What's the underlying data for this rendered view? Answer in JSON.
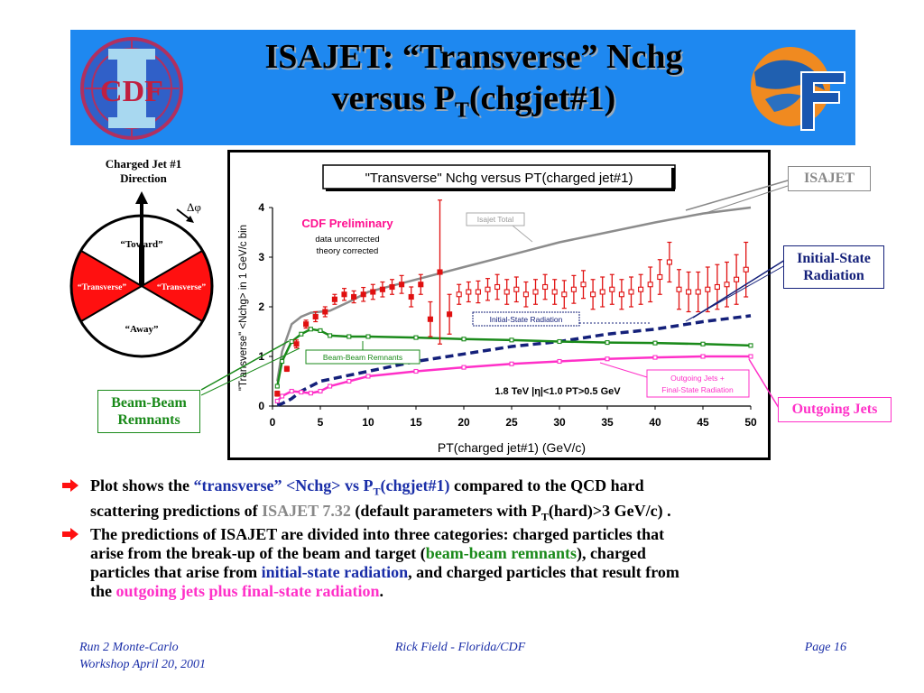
{
  "slide": {
    "title_line1": "ISAJET: “Transverse” Nchg",
    "title_line2_pre": "versus P",
    "title_line2_sub": "T",
    "title_line2_post": "(chgjet#1)",
    "left_logo_text": "CDF",
    "colors": {
      "banner": "#1e88f0",
      "blue_text": "#1a2ea8",
      "green": "#1a8a1a",
      "magenta": "#ff30c8",
      "red": "#e01010"
    }
  },
  "diagram": {
    "heading": "Charged Jet #1 Direction",
    "dphi": "Δφ",
    "toward": "“Toward”",
    "transverse_left": "“Transverse”",
    "transverse_right": "“Transverse”",
    "away": "“Away”"
  },
  "callouts": {
    "isajet": "ISAJET",
    "isr": "Initial-State Radiation",
    "outgoing": "Outgoing Jets",
    "bbr": "Beam-Beam Remnants"
  },
  "chart_data": {
    "type": "line",
    "title": "\"Transverse\" Nchg versus PT(charged jet#1)",
    "xlabel": "PT(charged jet#1)  (GeV/c)",
    "ylabel": "\"Transverse\" <Nchg> in 1 GeV/c bin",
    "xlim": [
      0,
      50
    ],
    "ylim": [
      0,
      4
    ],
    "xticks": [
      0,
      5,
      10,
      15,
      20,
      25,
      30,
      35,
      40,
      45,
      50
    ],
    "yticks": [
      0,
      1,
      2,
      3,
      4
    ],
    "annotations": {
      "prelim": "CDF Preliminary",
      "uncorrected": "data uncorrected",
      "corrected": "theory corrected",
      "cuts": "1.8 TeV |η|<1.0 PT>0.5 GeV",
      "isajet_total": "Isajet Total",
      "isr": "Initial-State Radiation",
      "bbr": "Beam-Beam Remnants",
      "outgoing_line1": "Outgoing Jets +",
      "outgoing_line2": "Final-State Radiation"
    },
    "series": [
      {
        "name": "Isajet Total",
        "color": "#8c8c8c",
        "style": "solid",
        "x": [
          0.5,
          1,
          2,
          3,
          4,
          5,
          6,
          8,
          10,
          15,
          20,
          25,
          30,
          35,
          40,
          45,
          50
        ],
        "y": [
          0.5,
          1.1,
          1.65,
          1.8,
          1.88,
          1.9,
          1.92,
          2.1,
          2.3,
          2.55,
          2.8,
          3.05,
          3.3,
          3.5,
          3.7,
          3.88,
          4.0
        ]
      },
      {
        "name": "Initial-State Radiation",
        "color": "#14207a",
        "style": "dashed",
        "x": [
          0.5,
          1,
          2,
          3,
          5,
          10,
          15,
          20,
          25,
          30,
          35,
          40,
          45,
          50
        ],
        "y": [
          0.02,
          0.05,
          0.15,
          0.3,
          0.5,
          0.7,
          0.9,
          1.05,
          1.2,
          1.3,
          1.45,
          1.55,
          1.7,
          1.82
        ]
      },
      {
        "name": "Beam-Beam Remnants",
        "color": "#1a8a1a",
        "style": "solid",
        "marker": "square-open",
        "x": [
          0.5,
          1,
          2,
          3,
          4,
          5,
          6,
          8,
          10,
          15,
          20,
          25,
          30,
          35,
          40,
          45,
          50
        ],
        "y": [
          0.4,
          0.9,
          1.3,
          1.45,
          1.55,
          1.52,
          1.42,
          1.4,
          1.4,
          1.38,
          1.35,
          1.33,
          1.3,
          1.28,
          1.27,
          1.25,
          1.22
        ]
      },
      {
        "name": "Outgoing Jets + Final-State Radiation",
        "color": "#ff30c8",
        "style": "solid",
        "marker": "square-open",
        "x": [
          0.5,
          1,
          2,
          3,
          4,
          5,
          6,
          8,
          10,
          15,
          20,
          25,
          30,
          35,
          40,
          45,
          50
        ],
        "y": [
          0.1,
          0.2,
          0.3,
          0.28,
          0.26,
          0.3,
          0.4,
          0.5,
          0.6,
          0.7,
          0.78,
          0.85,
          0.9,
          0.95,
          0.98,
          1.0,
          1.0
        ]
      },
      {
        "name": "CDF data",
        "color": "#e01010",
        "marker": "square-filled",
        "x": [
          0.5,
          1.5,
          2.5,
          3.5,
          4.5,
          5.5,
          6.5,
          7.5,
          8.5,
          9.5,
          10.5,
          11.5,
          12.5,
          13.5,
          14.5,
          15.5,
          16.5,
          17.5,
          18.5
        ],
        "y": [
          0.25,
          0.75,
          1.25,
          1.65,
          1.8,
          1.9,
          2.15,
          2.25,
          2.2,
          2.25,
          2.3,
          2.35,
          2.4,
          2.45,
          2.2,
          2.45,
          1.75,
          2.7,
          1.85
        ],
        "err": [
          0.05,
          0.05,
          0.08,
          0.08,
          0.1,
          0.1,
          0.1,
          0.12,
          0.12,
          0.14,
          0.15,
          0.15,
          0.15,
          0.18,
          0.2,
          0.2,
          0.35,
          1.45,
          0.4
        ]
      },
      {
        "name": "CDF data",
        "color": "#e01010",
        "marker": "square-open",
        "x": [
          19.5,
          20.5,
          21.5,
          22.5,
          23.5,
          24.5,
          25.5,
          26.5,
          27.5,
          28.5,
          29.5,
          30.5,
          31.5,
          32.5,
          33.5,
          34.5,
          35.5,
          36.5,
          37.5,
          38.5,
          39.5,
          40.5,
          41.5,
          42.5,
          43.5,
          44.5,
          45.5,
          46.5,
          47.5,
          48.5,
          49.5
        ],
        "y": [
          2.25,
          2.3,
          2.3,
          2.35,
          2.4,
          2.3,
          2.35,
          2.25,
          2.3,
          2.4,
          2.3,
          2.25,
          2.35,
          2.45,
          2.25,
          2.3,
          2.35,
          2.25,
          2.3,
          2.35,
          2.45,
          2.6,
          2.9,
          2.35,
          2.3,
          2.3,
          2.35,
          2.4,
          2.45,
          2.55,
          2.75
        ],
        "err": [
          0.2,
          0.2,
          0.22,
          0.22,
          0.25,
          0.25,
          0.25,
          0.25,
          0.25,
          0.25,
          0.25,
          0.28,
          0.28,
          0.28,
          0.3,
          0.3,
          0.3,
          0.3,
          0.3,
          0.3,
          0.35,
          0.35,
          0.4,
          0.4,
          0.4,
          0.4,
          0.45,
          0.45,
          0.45,
          0.5,
          0.55
        ]
      }
    ]
  },
  "bullets": {
    "b1_a": "Plot shows the ",
    "b1_b": "“transverse” <Nchg> vs P",
    "b1_b_sub": "T",
    "b1_c": "(chgjet#1)",
    "b1_d": " compared to the QCD hard",
    "b1_e": "scattering predictions of ",
    "b1_f": "ISAJET 7.32",
    "b1_g": " (default parameters with P",
    "b1_g_sub": "T",
    "b1_h": "(hard)>3 GeV/c) .",
    "b2_a": "The predictions of ISAJET are divided into three categories: charged particles that",
    "b2_b": "arise from the break-up of the beam and target (",
    "b2_c": "beam-beam remnants",
    "b2_d": "), charged",
    "b2_e": "particles that arise from ",
    "b2_f": "initial-state radiation",
    "b2_g": ", and charged particles that result from",
    "b2_h": "the ",
    "b2_i": "outgoing jets plus final-state radiation",
    "b2_j": "."
  },
  "footer": {
    "left_line1": "Run 2 Monte-Carlo",
    "left_line2": "Workshop April 20, 2001",
    "center": "Rick Field - Florida/CDF",
    "right": "Page 16"
  }
}
